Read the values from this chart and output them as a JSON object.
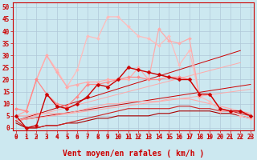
{
  "background_color": "#cce8f0",
  "grid_color": "#b0c8d8",
  "xlabel": "Vent moyen/en rafales ( km/h )",
  "xlabel_color": "#cc0000",
  "xlabel_fontsize": 7,
  "xticks": [
    0,
    1,
    2,
    3,
    4,
    5,
    6,
    7,
    8,
    9,
    10,
    11,
    12,
    13,
    14,
    15,
    16,
    17,
    18,
    19,
    20,
    21,
    22,
    23
  ],
  "yticks": [
    0,
    5,
    10,
    15,
    20,
    25,
    30,
    35,
    40,
    45,
    50
  ],
  "ylim": [
    -1,
    52
  ],
  "xlim": [
    -0.3,
    23.3
  ],
  "lines": [
    {
      "x": [
        0,
        1,
        2,
        3,
        4,
        5,
        6,
        7,
        8,
        9,
        10,
        11,
        12,
        13,
        14,
        15,
        16,
        17,
        18,
        19,
        20,
        21,
        22,
        23
      ],
      "y": [
        8,
        7,
        20,
        30,
        24,
        17,
        24,
        38,
        37,
        46,
        46,
        42,
        38,
        37,
        34,
        38,
        26,
        32,
        13,
        11,
        7,
        7,
        5,
        4
      ],
      "color": "#ffbbbb",
      "lw": 0.9,
      "marker": "D",
      "ms": 2.0,
      "zorder": 3
    },
    {
      "x": [
        0,
        1,
        2,
        3,
        4,
        5,
        6,
        7,
        8,
        9,
        10,
        11,
        12,
        13,
        14,
        15,
        16,
        17,
        18,
        19,
        20,
        21,
        22,
        23
      ],
      "y": [
        5,
        7,
        20,
        30,
        23,
        17,
        18,
        19,
        19,
        20,
        20,
        20,
        25,
        20,
        41,
        36,
        35,
        37,
        13,
        14,
        8,
        7,
        7,
        5
      ],
      "color": "#ffaaaa",
      "lw": 0.9,
      "marker": "D",
      "ms": 2.0,
      "zorder": 3
    },
    {
      "x": [
        0,
        1,
        2,
        3,
        4,
        5,
        6,
        7,
        8,
        9,
        10,
        11,
        12,
        13,
        14,
        15,
        16,
        17,
        18,
        19,
        20,
        21,
        22,
        23
      ],
      "y": [
        8,
        7,
        20,
        14,
        10,
        9,
        13,
        18,
        18,
        19,
        20,
        21,
        21,
        20,
        20,
        21,
        21,
        20,
        14,
        14,
        8,
        7,
        7,
        5
      ],
      "color": "#ff8888",
      "lw": 0.9,
      "marker": "D",
      "ms": 2.0,
      "zorder": 3
    },
    {
      "x": [
        0,
        1,
        2,
        3,
        4,
        5,
        6,
        7,
        8,
        9,
        10,
        11,
        12,
        13,
        14,
        15,
        16,
        17,
        18,
        19,
        20,
        21,
        22,
        23
      ],
      "y": [
        5,
        0,
        1,
        14,
        9,
        8,
        10,
        13,
        18,
        17,
        20,
        25,
        24,
        23,
        22,
        21,
        20,
        20,
        14,
        14,
        8,
        7,
        7,
        5
      ],
      "color": "#cc0000",
      "lw": 1.0,
      "marker": "D",
      "ms": 2.5,
      "zorder": 5
    },
    {
      "x": [
        0,
        23
      ],
      "y": [
        3,
        18
      ],
      "color": "#cc0000",
      "lw": 0.7,
      "marker": null,
      "ms": 0,
      "zorder": 2
    },
    {
      "x": [
        0,
        22
      ],
      "y": [
        3,
        32
      ],
      "color": "#cc0000",
      "lw": 0.7,
      "marker": null,
      "ms": 0,
      "zorder": 2
    },
    {
      "x": [
        0,
        22
      ],
      "y": [
        3,
        27
      ],
      "color": "#ffaaaa",
      "lw": 0.7,
      "marker": null,
      "ms": 0,
      "zorder": 2
    },
    {
      "x": [
        0,
        23
      ],
      "y": [
        3,
        16
      ],
      "color": "#ffaaaa",
      "lw": 0.7,
      "marker": null,
      "ms": 0,
      "zorder": 2
    },
    {
      "x": [
        0,
        1,
        2,
        3,
        4,
        5,
        6,
        7,
        8,
        9,
        10,
        11,
        12,
        13,
        14,
        15,
        16,
        17,
        18,
        19,
        20,
        21,
        22,
        23
      ],
      "y": [
        2,
        0,
        0,
        1,
        1,
        2,
        2,
        3,
        4,
        4,
        5,
        5,
        5,
        5,
        6,
        6,
        7,
        7,
        7,
        7,
        6,
        6,
        5,
        4
      ],
      "color": "#aa0000",
      "lw": 0.8,
      "marker": null,
      "ms": 0,
      "zorder": 2
    },
    {
      "x": [
        0,
        1,
        2,
        3,
        4,
        5,
        6,
        7,
        8,
        9,
        10,
        11,
        12,
        13,
        14,
        15,
        16,
        17,
        18,
        19,
        20,
        21,
        22,
        23
      ],
      "y": [
        3,
        0,
        0,
        1,
        1,
        2,
        3,
        4,
        5,
        6,
        7,
        8,
        8,
        8,
        8,
        8,
        9,
        9,
        8,
        8,
        7,
        7,
        6,
        5
      ],
      "color": "#cc2222",
      "lw": 0.8,
      "marker": null,
      "ms": 0,
      "zorder": 2
    },
    {
      "x": [
        0,
        1,
        2,
        3,
        4,
        5,
        6,
        7,
        8,
        9,
        10,
        11,
        12,
        13,
        14,
        15,
        16,
        17,
        18,
        19,
        20,
        21,
        22,
        23
      ],
      "y": [
        5,
        5,
        6,
        6,
        6,
        6,
        7,
        8,
        9,
        10,
        10,
        11,
        11,
        11,
        11,
        12,
        12,
        12,
        11,
        10,
        9,
        8,
        7,
        6
      ],
      "color": "#ffaaaa",
      "lw": 0.8,
      "marker": null,
      "ms": 0,
      "zorder": 2
    }
  ],
  "tick_fontsize": 5.5,
  "tick_color": "#cc0000"
}
